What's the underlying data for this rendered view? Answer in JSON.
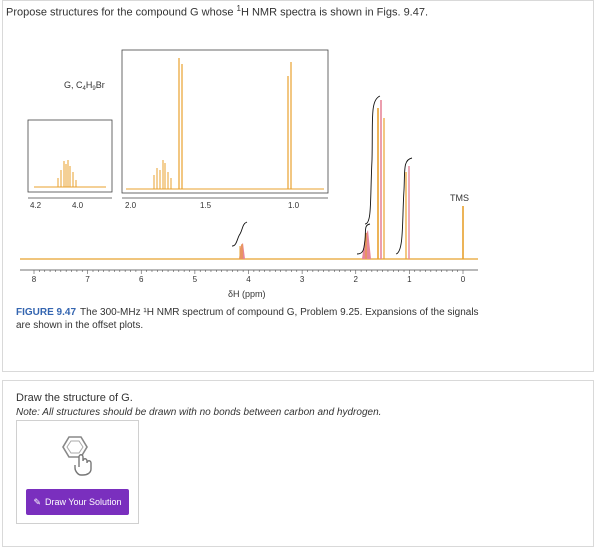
{
  "question": {
    "prefix": "Propose structures for the compound G whose ",
    "sup": "1",
    "suffix": "H NMR spectra is shown in Figs. 9.47."
  },
  "figure": {
    "compound_label": "G, C4H9Br",
    "tms_label": "TMS",
    "xlabel": "δH (ppm)",
    "main_ticks": [
      "8",
      "7",
      "6",
      "5",
      "4",
      "3",
      "2",
      "1",
      "0"
    ],
    "inset1_ticks": [
      "4.2",
      "4.0"
    ],
    "inset2_ticks": [
      "2.0",
      "1.5",
      "1.0"
    ],
    "caption_fig": "FIGURE 9.47",
    "caption_text": "The 300-MHz ¹H NMR spectrum of compound G, Problem 9.25. Expansions of the signals are shown in the offset plots."
  },
  "draw": {
    "title": "Draw the structure of G.",
    "note": "Note: All structures should be drawn with no bonds between carbon and hydrogen.",
    "button_label": "Draw Your Solution",
    "icon": "molecule-drawing-icon"
  },
  "colors": {
    "peak": "#e8a22e",
    "peak_pink": "#e7869a",
    "button": "#7a2fbe",
    "caption_accent": "#3465b0"
  }
}
